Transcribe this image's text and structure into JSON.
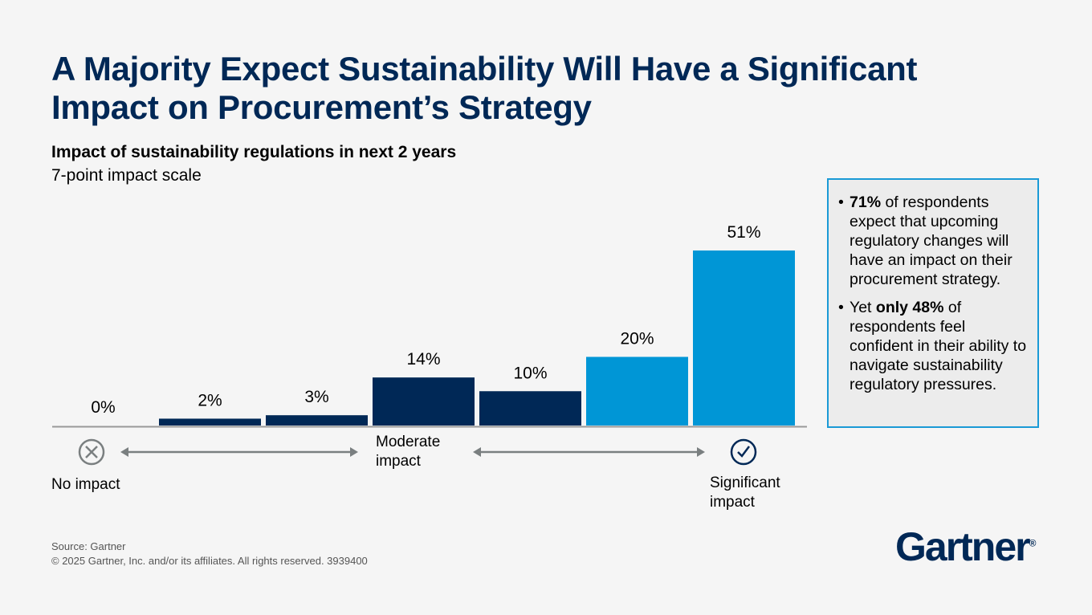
{
  "header": {
    "title": "A Majority Expect Sustainability Will Have a Significant Impact on Procurement’s Strategy",
    "subtitle": "Impact of sustainability regulations in next 2 years",
    "subtitle2": "7-point impact scale"
  },
  "chart_data": {
    "type": "bar",
    "title": "Impact of sustainability regulations in next 2 years",
    "subtitle": "7-point impact scale",
    "categories": [
      "No impact",
      "",
      "",
      "Moderate impact",
      "",
      "",
      "Significant impact"
    ],
    "values": [
      0,
      2,
      3,
      14,
      10,
      20,
      51
    ],
    "data_labels": [
      "0%",
      "2%",
      "3%",
      "14%",
      "10%",
      "20%",
      "51%"
    ],
    "bar_colors": [
      "#002856",
      "#002856",
      "#002856",
      "#002856",
      "#002856",
      "#0096d6",
      "#0096d6"
    ],
    "ylim": [
      0,
      51
    ],
    "grid": false,
    "axis_labels": {
      "left": "No impact",
      "middle": "Moderate impact",
      "right": "Significant impact"
    },
    "icons": {
      "left": "x-circle-icon",
      "right": "check-circle-icon"
    }
  },
  "callout": {
    "items": [
      {
        "bold": "71%",
        "text": " of respondents expect that upcoming regulatory changes will have an impact on their procurement strategy."
      },
      {
        "prefix": "Yet ",
        "bold": "only 48%",
        "text": " of respondents feel confident in their ability to navigate sustainability regulatory pressures."
      }
    ]
  },
  "footer": {
    "source": "Source: Gartner",
    "copyright": "© 2025 Gartner, Inc. and/or its affiliates. All rights reserved. 3939400"
  },
  "logo": {
    "text": "Gartner",
    "mark": "®"
  }
}
